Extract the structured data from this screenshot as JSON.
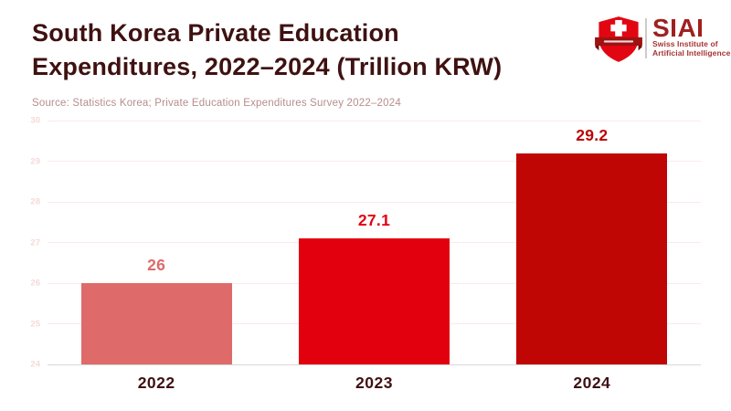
{
  "header": {
    "title_line1": "South Korea Private Education",
    "title_line2": "Expenditures, 2022–2024 (Trillion KRW)",
    "source": "Source: Statistics Korea; Private Education Expenditures Survey 2022–2024"
  },
  "logo": {
    "acronym": "SIAI",
    "name_line1": "Swiss Institute of",
    "name_line2": "Artificial Intelligence",
    "shield_color": "#e20613",
    "banner_color": "#9e1212",
    "text_color": "#9e2121"
  },
  "chart_data": {
    "type": "bar",
    "title": "South Korea Private Education Expenditures, 2022–2024 (Trillion KRW)",
    "categories": [
      "2022",
      "2023",
      "2024"
    ],
    "values": [
      26,
      27.1,
      29.2
    ],
    "value_labels": [
      "26",
      "27.1",
      "29.2"
    ],
    "bar_colors": [
      "#df6a6a",
      "#e2000f",
      "#c00505"
    ],
    "label_colors": [
      "#df6a6a",
      "#e2000f",
      "#bb0606"
    ],
    "xlabel": "",
    "ylabel": "",
    "ylim": [
      24,
      30
    ],
    "yticks": [
      24,
      25,
      26,
      27,
      28,
      29,
      30
    ],
    "grid": true,
    "legend": "none"
  },
  "colors": {
    "background": "#ffffff",
    "title_text": "#3f1111",
    "source_text": "#b78d8d",
    "ytick_text": "#f6d9d9",
    "gridline": "#fbe9e9",
    "axis_line": "#d8d8d8",
    "xtick_text": "#3f1111"
  }
}
